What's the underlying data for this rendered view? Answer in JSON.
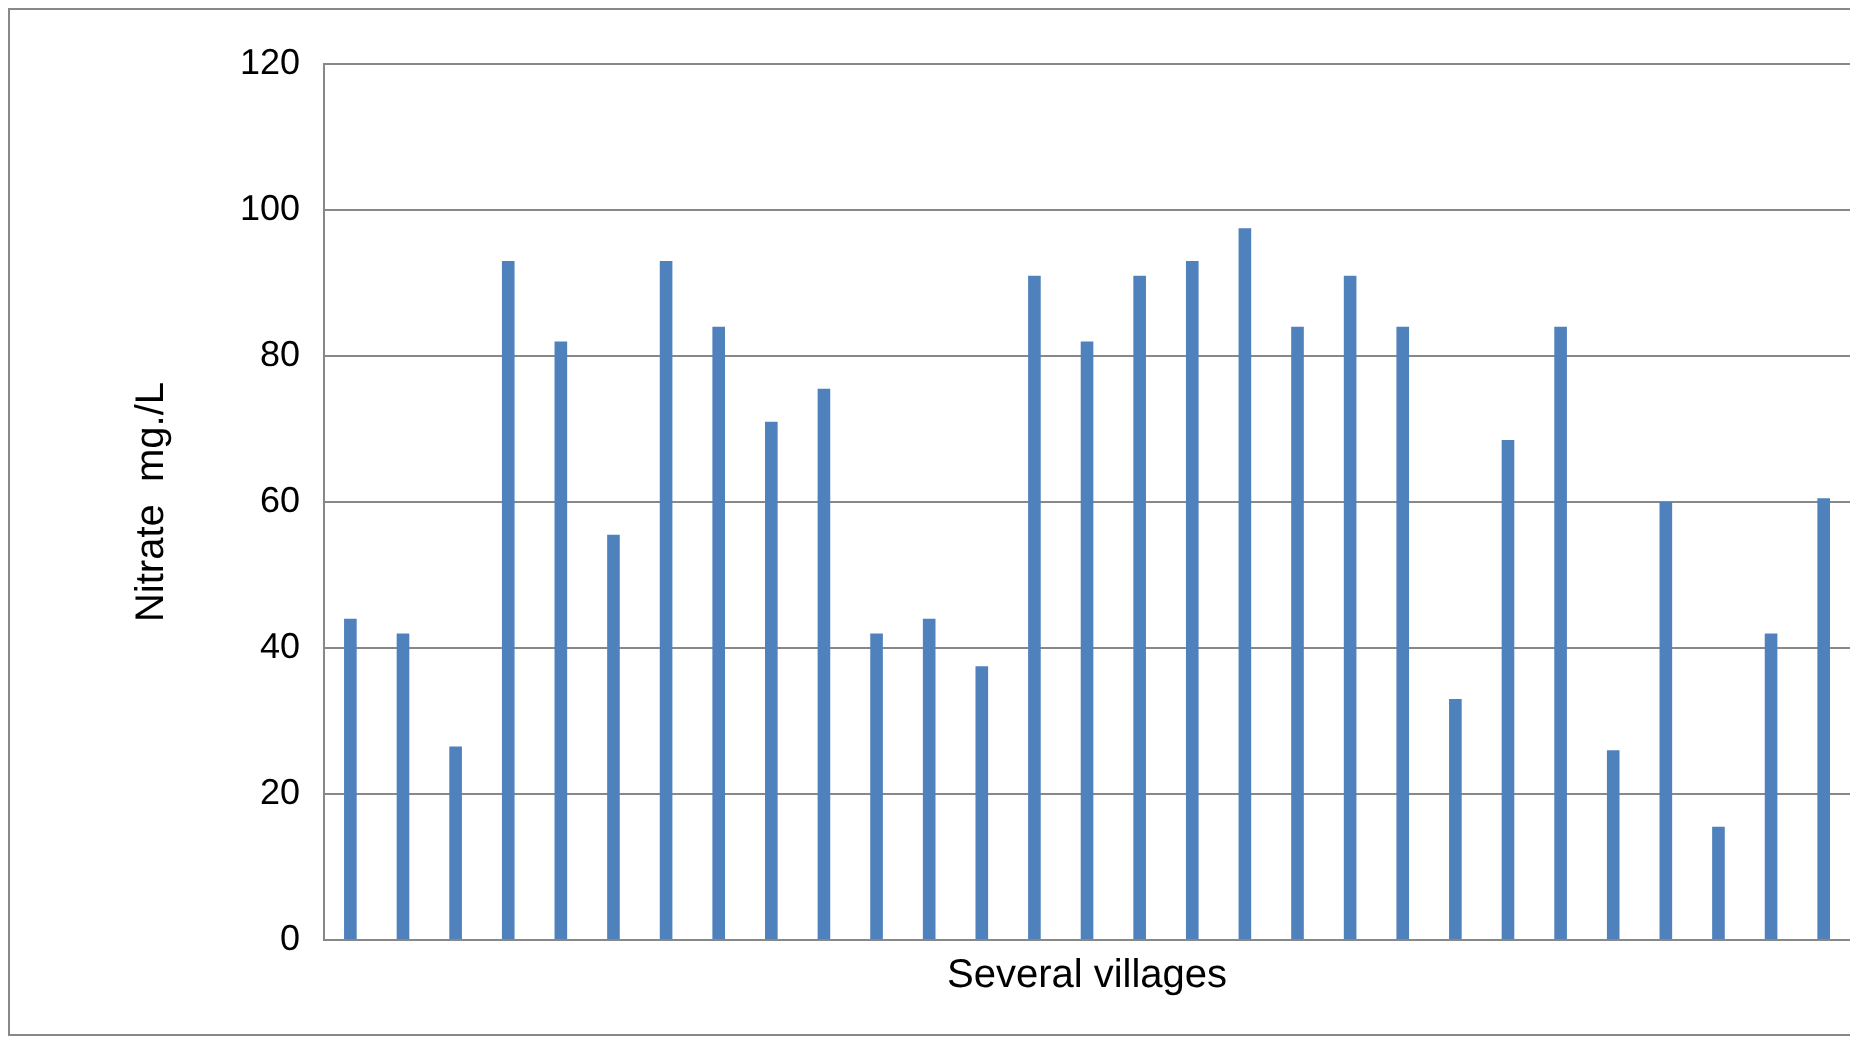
{
  "chart_data": {
    "type": "bar",
    "xlabel": "Several villages",
    "ylabel": "Nitrate  mg./L",
    "categories": [
      null,
      null,
      null,
      null,
      null,
      null,
      null,
      null,
      null,
      null,
      null,
      null,
      null,
      null,
      null,
      null,
      null,
      null,
      null,
      null,
      null,
      null,
      null,
      null,
      null,
      null,
      null,
      null,
      null
    ],
    "values": [
      44,
      42,
      26.5,
      93,
      82,
      55.5,
      93,
      84,
      71,
      75.5,
      42,
      44,
      37.5,
      91,
      82,
      91,
      93,
      97.5,
      84,
      91,
      84,
      33,
      68.5,
      84,
      26,
      60,
      15.5,
      42,
      60.5
    ],
    "color": "#4f81bd",
    "ylim": [
      0,
      120
    ],
    "yticks": [
      0,
      20,
      40,
      60,
      80,
      100,
      120
    ],
    "grid": "y",
    "legend": false,
    "tick_labels": "y"
  }
}
